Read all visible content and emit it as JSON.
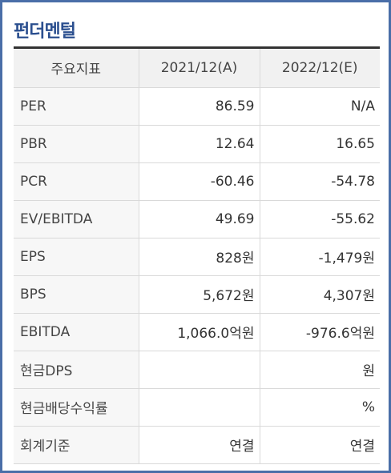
{
  "section": {
    "title": "펀더멘털"
  },
  "table": {
    "headers": [
      "주요지표",
      "2021/12(A)",
      "2022/12(E)"
    ],
    "rows": [
      {
        "label": "PER",
        "v2021": "86.59",
        "v2022": "N/A"
      },
      {
        "label": "PBR",
        "v2021": "12.64",
        "v2022": "16.65"
      },
      {
        "label": "PCR",
        "v2021": "-60.46",
        "v2022": "-54.78"
      },
      {
        "label": "EV/EBITDA",
        "v2021": "49.69",
        "v2022": "-55.62"
      },
      {
        "label": "EPS",
        "v2021": "828원",
        "v2022": "-1,479원"
      },
      {
        "label": "BPS",
        "v2021": "5,672원",
        "v2022": "4,307원"
      },
      {
        "label": "EBITDA",
        "v2021": "1,066.0억원",
        "v2022": "-976.6억원"
      },
      {
        "label": "현금DPS",
        "v2021": "",
        "v2022": "원"
      },
      {
        "label": "현금배당수익률",
        "v2021": "",
        "v2022": "%"
      },
      {
        "label": "회계기준",
        "v2021": "연결",
        "v2022": "연결"
      }
    ]
  }
}
